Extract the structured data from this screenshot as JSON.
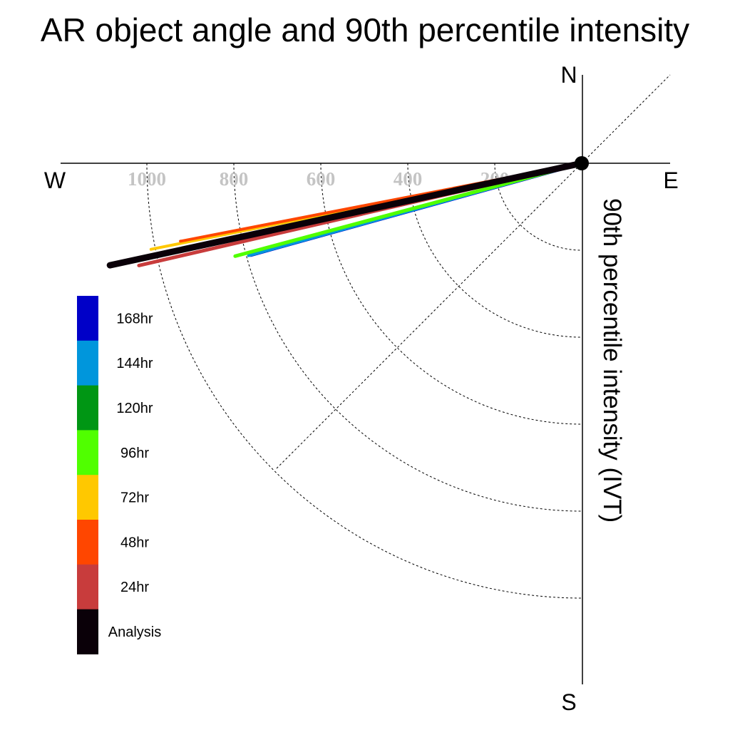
{
  "chart_data": {
    "type": "polar-vector",
    "title": "AR object angle and 90th percentile intensity",
    "radial_label": "90th percentile intensity (IVT)",
    "compass": {
      "north": "N",
      "south": "S",
      "east": "E",
      "west": "W"
    },
    "radial_ticks": [
      200,
      400,
      600,
      800,
      1000
    ],
    "radial_max": 1200,
    "angle_unit": "degrees below west",
    "series": [
      {
        "name": "168hr",
        "color": "#0000c8",
        "intensity": 790,
        "angle": 15.5
      },
      {
        "name": "144hr",
        "color": "#0096dc",
        "intensity": 795,
        "angle": 15.5
      },
      {
        "name": "120hr",
        "color": "#009614",
        "intensity": 805,
        "angle": 15.0
      },
      {
        "name": "96hr",
        "color": "#50ff00",
        "intensity": 825,
        "angle": 15.0
      },
      {
        "name": "72hr",
        "color": "#ffc800",
        "intensity": 1010,
        "angle": 11.3
      },
      {
        "name": "48hr",
        "color": "#ff4600",
        "intensity": 940,
        "angle": 11.0
      },
      {
        "name": "24hr",
        "color": "#c83c3c",
        "intensity": 1045,
        "angle": 13.0
      },
      {
        "name": "Analysis",
        "color": "#0a0008",
        "intensity": 1110,
        "angle": 12.2
      }
    ]
  }
}
